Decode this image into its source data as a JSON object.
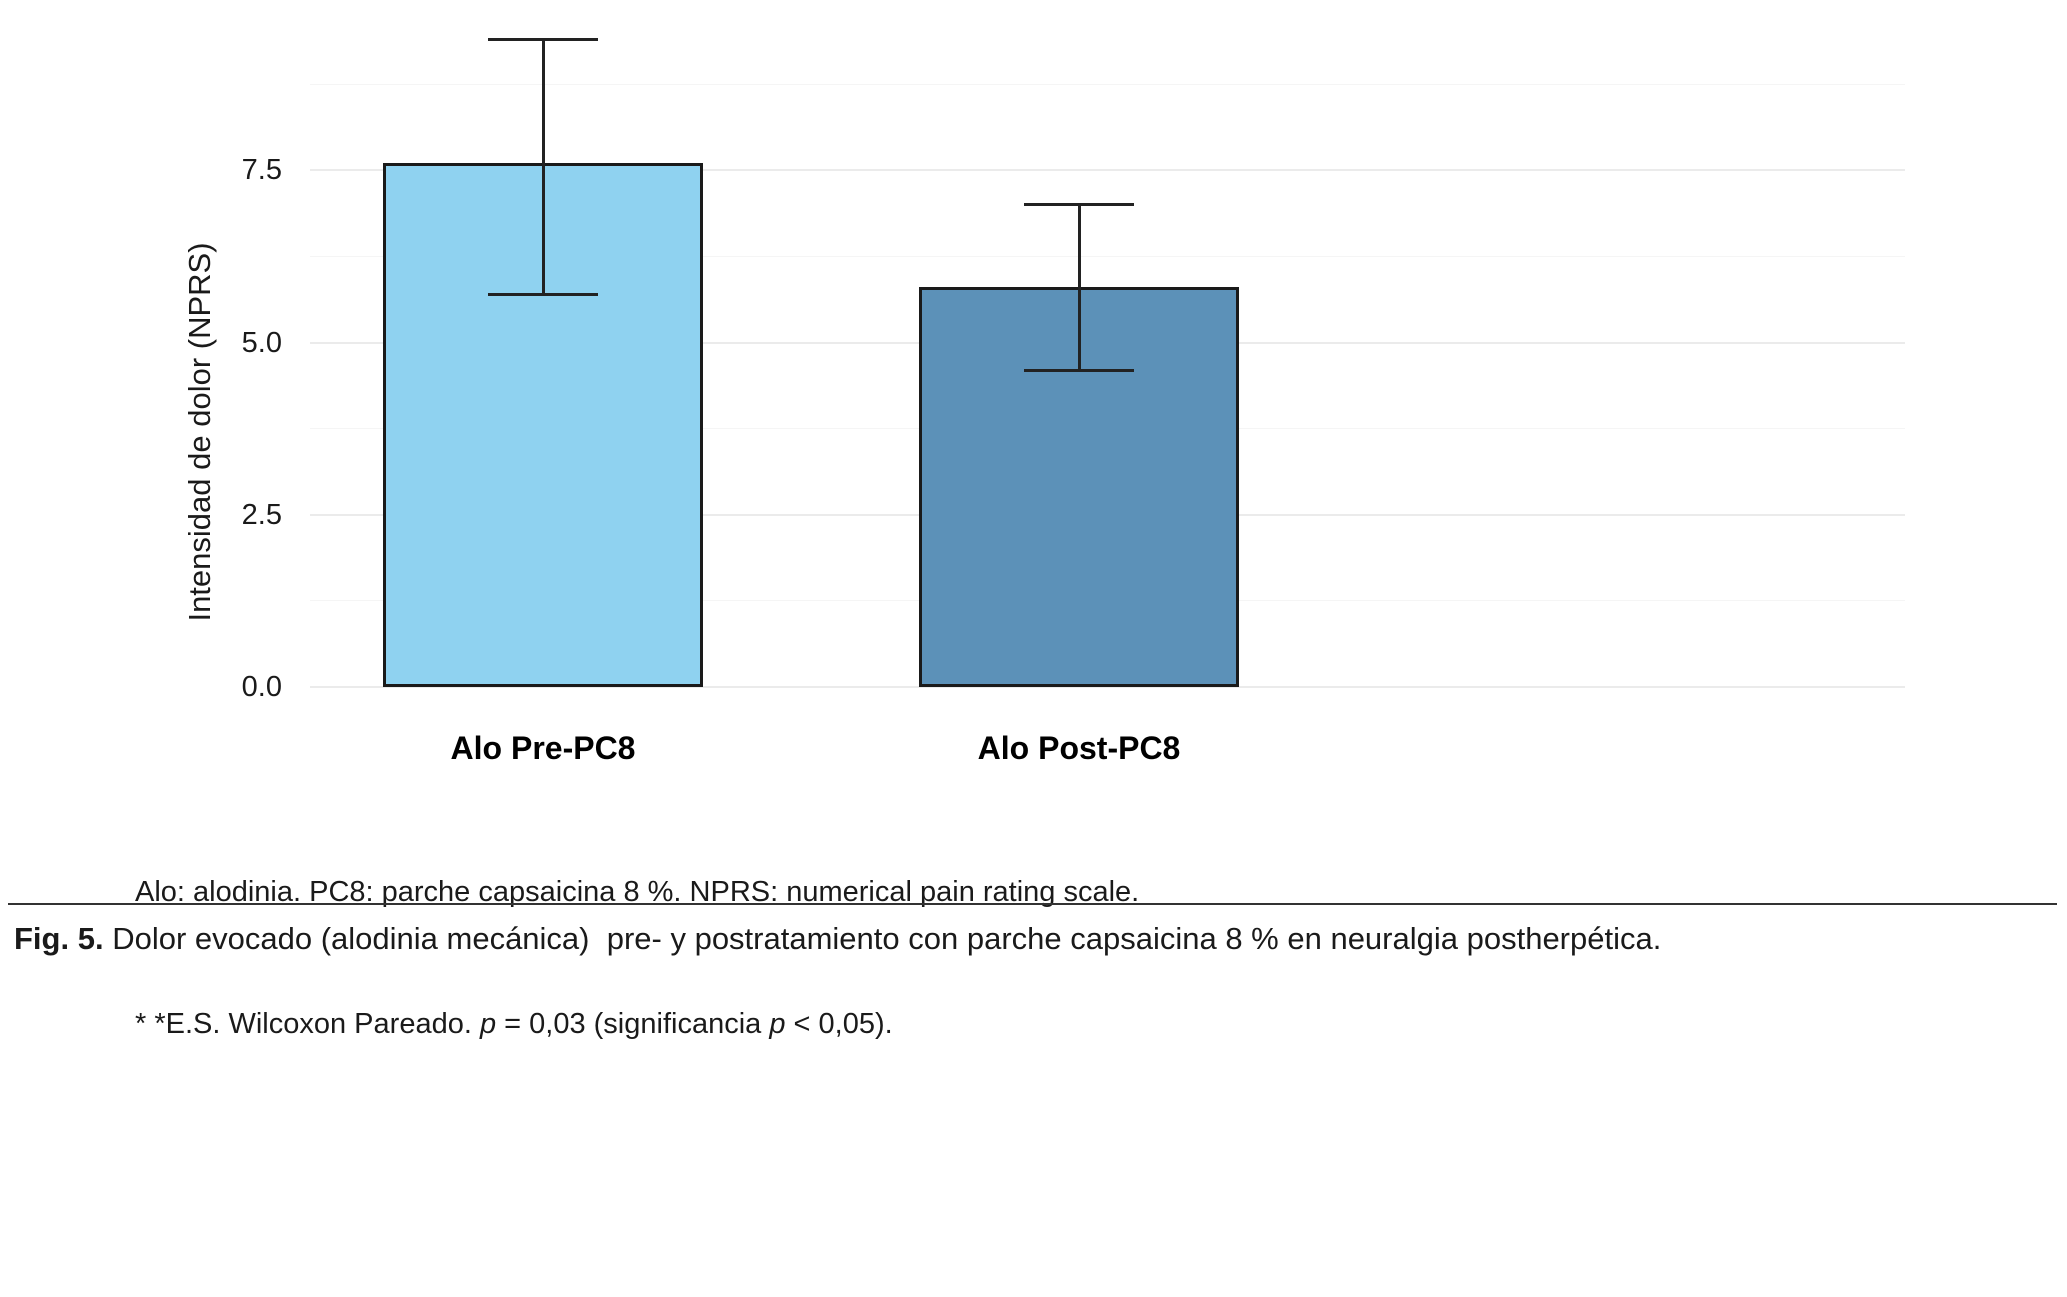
{
  "chart_data": {
    "type": "bar",
    "title": "",
    "categories": [
      "Alo Pre-PC8",
      "Alo Post-PC8"
    ],
    "series": [
      {
        "name": "Intensidad de dolor (NPRS)",
        "values": [
          7.6,
          5.8
        ],
        "error_low": [
          5.7,
          4.6
        ],
        "error_high": [
          9.4,
          7.0
        ]
      }
    ],
    "bar_colors": [
      "#8FD2F0",
      "#5C91B8"
    ],
    "bar_border_color": "#1A1A1A",
    "errorbar_color": "#222222",
    "xlabel": "",
    "ylabel": "Intensidad de dolor (NPRS)",
    "ylim": [
      0,
      9.8
    ],
    "yticks": [
      0,
      2.5,
      5,
      7.5
    ],
    "ytick_labels": [
      "0.0",
      "2.5",
      "5.0",
      "7.5"
    ],
    "grid": "horizontal, major and minor, light gray on white",
    "legend": "none",
    "background": "#FFFFFF"
  },
  "footnote": {
    "line1": "Alo: alodinia. PC8: parche capsaicina 8 %. NPRS: numerical pain rating scale.",
    "line2_parts": [
      "* *E.S. Wilcoxon Pareado. ",
      "p",
      " = 0,03 (significancia ",
      "p",
      " < 0,05)."
    ]
  },
  "caption": {
    "label": "Fig. 5.",
    "text": " Dolor evocado (alodinia mecánica)  pre- y postratamiento con parche capsaicina 8 % en neuralgia postherpética."
  }
}
